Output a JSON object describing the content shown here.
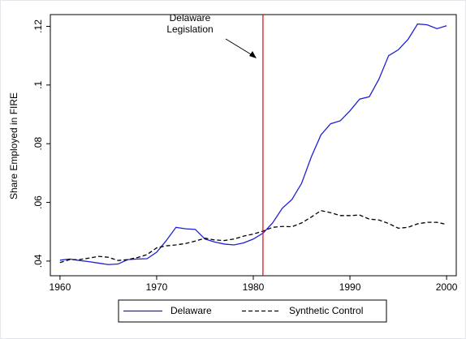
{
  "chart_data": {
    "type": "line",
    "y_label": "Share Employed in FIRE",
    "x": [
      1960,
      1961,
      1962,
      1963,
      1964,
      1965,
      1966,
      1967,
      1968,
      1969,
      1970,
      1971,
      1972,
      1973,
      1974,
      1975,
      1976,
      1977,
      1978,
      1979,
      1980,
      1981,
      1982,
      1983,
      1984,
      1985,
      1986,
      1987,
      1988,
      1989,
      1990,
      1991,
      1992,
      1993,
      1994,
      1995,
      1996,
      1997,
      1998,
      1999,
      2000
    ],
    "series": [
      {
        "name": "Delaware",
        "color": "#1f1fd6",
        "dash": false,
        "values": [
          0.0403,
          0.0407,
          0.0402,
          0.0398,
          0.0393,
          0.0388,
          0.039,
          0.0405,
          0.0407,
          0.0408,
          0.043,
          0.047,
          0.0515,
          0.051,
          0.0508,
          0.0475,
          0.0465,
          0.0458,
          0.0455,
          0.0462,
          0.0475,
          0.0495,
          0.053,
          0.058,
          0.061,
          0.0665,
          0.0755,
          0.083,
          0.0868,
          0.0878,
          0.0912,
          0.0952,
          0.096,
          0.102,
          0.11,
          0.112,
          0.1155,
          0.1208,
          0.1205,
          0.1192,
          0.1202
        ]
      },
      {
        "name": "Synthetic Control",
        "color": "#000000",
        "dash": true,
        "values": [
          0.0395,
          0.0405,
          0.0405,
          0.041,
          0.0416,
          0.0413,
          0.0402,
          0.0405,
          0.0412,
          0.0422,
          0.0445,
          0.0452,
          0.0455,
          0.046,
          0.0468,
          0.0478,
          0.0472,
          0.047,
          0.0475,
          0.0485,
          0.0492,
          0.0502,
          0.0515,
          0.0518,
          0.0517,
          0.053,
          0.055,
          0.0572,
          0.0565,
          0.0555,
          0.0555,
          0.0557,
          0.0543,
          0.054,
          0.0528,
          0.0512,
          0.0515,
          0.0527,
          0.0532,
          0.0532,
          0.0525
        ]
      }
    ],
    "vline": {
      "x": 1981,
      "color": "#e8141a",
      "annotation": [
        "Delaware",
        "Legislation"
      ]
    },
    "xlim": [
      1959,
      2001
    ],
    "xticks": [
      1960,
      1970,
      1980,
      1990,
      2000
    ],
    "ylim": [
      0.035,
      0.124
    ],
    "yticks": [
      {
        "value": 0.04,
        "label": ".04"
      },
      {
        "value": 0.06,
        "label": ".06"
      },
      {
        "value": 0.08,
        "label": ".08"
      },
      {
        "value": 0.1,
        "label": ".1"
      },
      {
        "value": 0.12,
        "label": ".12"
      }
    ],
    "grid": false,
    "legend": "bottom"
  }
}
